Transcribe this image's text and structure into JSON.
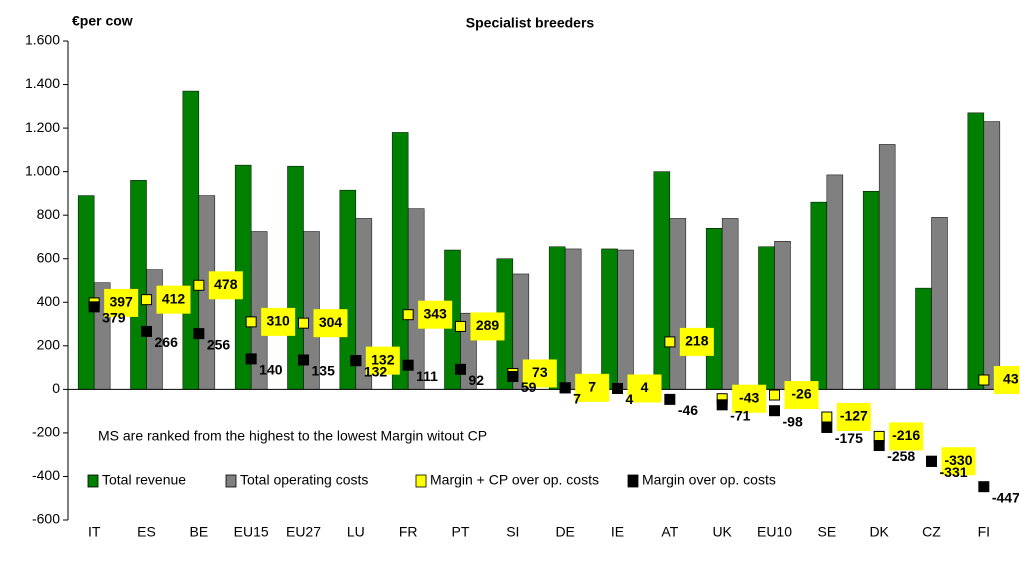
{
  "chart_data": {
    "type": "bar",
    "title": "Specialist breeders",
    "y_label": "€per cow",
    "annotation": "MS are ranked from the highest to the lowest Margin witout CP",
    "categories": [
      "IT",
      "ES",
      "BE",
      "EU15",
      "EU27",
      "LU",
      "FR",
      "PT",
      "SI",
      "DE",
      "IE",
      "AT",
      "UK",
      "EU10",
      "SE",
      "DK",
      "CZ",
      "FI"
    ],
    "series": [
      {
        "name": "Total revenue",
        "color": "#008000",
        "kind": "bar",
        "values": [
          890,
          960,
          1370,
          1030,
          1025,
          915,
          1180,
          640,
          600,
          655,
          645,
          1000,
          740,
          655,
          860,
          910,
          465,
          1270
        ]
      },
      {
        "name": "Total operating costs",
        "color": "#808080",
        "kind": "bar",
        "values": [
          490,
          550,
          890,
          725,
          725,
          785,
          830,
          350,
          530,
          645,
          640,
          785,
          785,
          680,
          985,
          1125,
          790,
          1230
        ]
      },
      {
        "name": "Margin + CP over op. costs",
        "color": "#ffff00",
        "kind": "marker",
        "values": [
          397,
          412,
          478,
          310,
          304,
          132,
          343,
          289,
          73,
          7,
          4,
          218,
          -43,
          -26,
          -127,
          -216,
          -330,
          43
        ]
      },
      {
        "name": "Margin over op. costs",
        "color": "#000000",
        "kind": "marker",
        "values": [
          379,
          266,
          256,
          140,
          135,
          132,
          111,
          92,
          59,
          7,
          4,
          -46,
          -71,
          -98,
          -175,
          -258,
          -331,
          -447
        ]
      }
    ],
    "ylim": [
      -600,
      1600
    ],
    "yticks": [
      -600,
      -400,
      -200,
      0,
      200,
      400,
      600,
      800,
      {
        "value": 1000,
        "label": "1.000"
      },
      {
        "value": 1200,
        "label": "1.200"
      },
      {
        "value": 1400,
        "label": "1.400"
      },
      {
        "value": 1600,
        "label": "1.600"
      }
    ],
    "grid": false
  }
}
